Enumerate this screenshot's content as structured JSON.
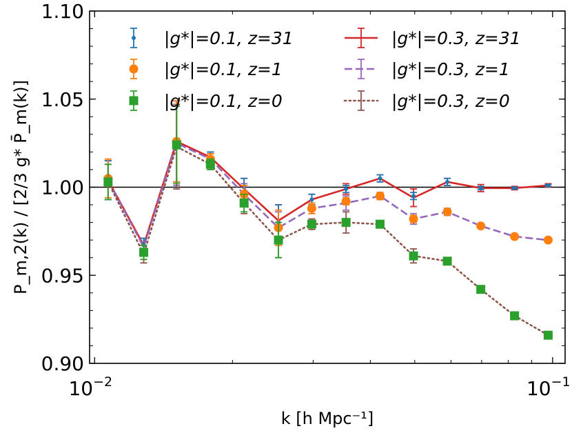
{
  "chart_data": {
    "type": "line",
    "xscale": "log",
    "xlim": [
      0.00975,
      0.1065
    ],
    "ylim": [
      0.9,
      1.1
    ],
    "xlabel": "k [h Mpc⁻¹]",
    "ylabel": "P_m,2(k) / [2/3 g* P̄_m(k)]",
    "x_ticks": [
      {
        "value": 0.01,
        "base": "10",
        "exp": "−2"
      },
      {
        "value": 0.1,
        "base": "10",
        "exp": "−1"
      }
    ],
    "y_ticks": [
      {
        "value": 0.9,
        "label": "0.90"
      },
      {
        "value": 0.95,
        "label": "0.95"
      },
      {
        "value": 1.0,
        "label": "1.00"
      },
      {
        "value": 1.05,
        "label": "1.05"
      },
      {
        "value": 1.1,
        "label": "1.10"
      }
    ],
    "reference_line": 1.0,
    "x": [
      0.0107,
      0.0128,
      0.0151,
      0.0179,
      0.0212,
      0.0252,
      0.0298,
      0.0354,
      0.042,
      0.0497,
      0.0589,
      0.0697,
      0.0826,
      0.0978
    ],
    "series": [
      {
        "name": "|g*|=0.1, z=31",
        "color": "#1f77b4",
        "marker": "dot",
        "linestyle": "none",
        "values": [
          1.004,
          0.967,
          1.026,
          1.017,
          1.0,
          0.98,
          0.993,
          0.999,
          1.005,
          0.995,
          1.003,
          0.9995,
          0.9995,
          1.001
        ],
        "errors": [
          0.011,
          0.004,
          0.023,
          0.003,
          0.005,
          0.01,
          0.003,
          0.002,
          0.002,
          0.002,
          0.002,
          0.001,
          0.0005,
          0.0005
        ]
      },
      {
        "name": "|g*|=0.1, z=1",
        "color": "#ff7f0e",
        "marker": "circle",
        "linestyle": "none",
        "values": [
          1.005,
          0.963,
          1.026,
          1.016,
          0.996,
          0.977,
          0.988,
          0.992,
          0.995,
          0.982,
          0.986,
          0.978,
          0.972,
          0.97
        ],
        "errors": [
          0.011,
          0.004,
          0.023,
          0.003,
          0.005,
          0.01,
          0.003,
          0.002,
          0.002,
          0.002,
          0.001,
          0.001,
          0.0005,
          0.0005
        ]
      },
      {
        "name": "|g*|=0.1, z=0",
        "color": "#2ca02c",
        "marker": "square",
        "linestyle": "none",
        "values": [
          1.003,
          0.963,
          1.024,
          1.013,
          0.991,
          0.97,
          0.979,
          0.98,
          0.979,
          0.961,
          0.958,
          0.942,
          0.927,
          0.916
        ],
        "errors": [
          0.01,
          0.004,
          0.022,
          0.003,
          0.005,
          0.01,
          0.002,
          0.002,
          0.001,
          0.002,
          0.001,
          0.001,
          0.0005,
          0.0005
        ]
      },
      {
        "name": "|g*|=0.3, z=31",
        "color": "#d62728",
        "marker": "none",
        "linestyle": "solid",
        "values": [
          1.004,
          0.967,
          1.026,
          1.017,
          0.999,
          0.981,
          0.993,
          0.999,
          1.005,
          0.994,
          1.003,
          0.9995,
          0.9995,
          1.001
        ],
        "errors": [
          0.011,
          0.004,
          0.023,
          0.003,
          0.006,
          0.009,
          0.003,
          0.003,
          0.002,
          0.005,
          0.002,
          0.002,
          0.001,
          0.001
        ]
      },
      {
        "name": "|g*|=0.3, z=1",
        "color": "#9467bd",
        "marker": "none",
        "linestyle": "dashed",
        "values": [
          1.004,
          0.966,
          1.025,
          1.016,
          0.996,
          0.977,
          0.988,
          0.991,
          0.995,
          0.982,
          0.986,
          0.978,
          0.972,
          0.97
        ],
        "errors": [
          0.011,
          0.005,
          0.024,
          0.003,
          0.006,
          0.009,
          0.003,
          0.004,
          0.002,
          0.003,
          0.002,
          0.001,
          0.001,
          0.001
        ]
      },
      {
        "name": "|g*|=0.3, z=0",
        "color": "#8c564b",
        "marker": "none",
        "linestyle": "dotted",
        "values": [
          1.003,
          0.962,
          1.023,
          1.013,
          0.991,
          0.97,
          0.979,
          0.98,
          0.979,
          0.961,
          0.958,
          0.942,
          0.927,
          0.916
        ],
        "errors": [
          0.01,
          0.005,
          0.024,
          0.003,
          0.006,
          0.01,
          0.003,
          0.006,
          0.002,
          0.004,
          0.002,
          0.001,
          0.001,
          0.001
        ]
      }
    ],
    "legend": {
      "placement": "top",
      "entries": [
        {
          "g": "|g*|=0.1",
          "z": "z=31"
        },
        {
          "g": "|g*|=0.1",
          "z": "z=1"
        },
        {
          "g": "|g*|=0.1",
          "z": "z=0"
        },
        {
          "g": "|g*|=0.3",
          "z": "z=31"
        },
        {
          "g": "|g*|=0.3",
          "z": "z=1"
        },
        {
          "g": "|g*|=0.3",
          "z": "z=0"
        }
      ]
    }
  }
}
